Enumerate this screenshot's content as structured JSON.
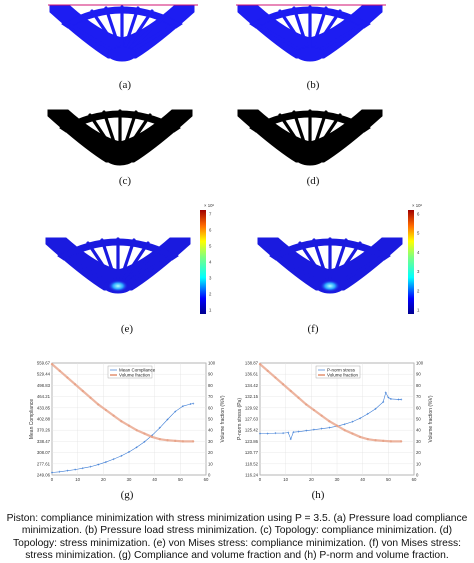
{
  "panel_labels": [
    "(a)",
    "(b)",
    "(c)",
    "(d)",
    "(e)",
    "(f)",
    "(g)",
    "(h)"
  ],
  "colors": {
    "structure_blue": "#1d1df2",
    "structure_black": "#000000",
    "stress_low": "#1a1adf",
    "compliance_series": "#3a7bd5",
    "volume_series": "#e8a388"
  },
  "colorbar_e": {
    "exponent": "× 10⁶",
    "ticks": [
      "7",
      "6",
      "5",
      "4",
      "3",
      "2",
      "1"
    ]
  },
  "colorbar_f": {
    "exponent": "× 10⁶",
    "ticks": [
      "6",
      "5",
      "4",
      "3",
      "2",
      "1"
    ]
  },
  "caption": {
    "text": "Piston: compliance minimization with stress minimization using P = 3.5. (a) Pressure load compliance minimization. (b) Pressure load stress minimization. (c) Topology: compliance minimization. (d) Topology: stress minimization. (e) von Mises stress: compliance minimization. (f) von Mises stress: stress minimization. (g) Compliance and volume fraction and (h) P-norm and volume fraction."
  },
  "chart_data": [
    {
      "type": "line",
      "xlabel": "",
      "ylabel": "Mean Compliance",
      "y2label": "Volume fraction (%V)",
      "xlim": [
        0,
        60
      ],
      "ylim": [
        249.06,
        559.67
      ],
      "y2lim": [
        0,
        100
      ],
      "yticks": [
        "559.67",
        "529.44",
        "498.83",
        "464.21",
        "433.85",
        "402.88",
        "370.26",
        "338.47",
        "308.07",
        "277.61",
        "249.06"
      ],
      "y2ticks": [
        "100",
        "90",
        "80",
        "70",
        "60",
        "50",
        "40",
        "30",
        "20",
        "10",
        "0"
      ],
      "xticks": [
        "0",
        "10",
        "20",
        "30",
        "40",
        "50",
        "60"
      ],
      "legend": [
        "Mean Compliance",
        "Volume fraction"
      ],
      "legend_position": "top-center",
      "series": [
        {
          "name": "Mean Compliance",
          "axis": "left",
          "x": [
            0,
            3,
            6,
            9,
            12,
            15,
            18,
            21,
            24,
            27,
            30,
            33,
            36,
            39,
            42,
            45,
            48,
            51,
            54,
            55
          ],
          "values": [
            256,
            258,
            261,
            264,
            268,
            272,
            278,
            285,
            293,
            302,
            313,
            326,
            341,
            359,
            380,
            403,
            425,
            440,
            446,
            447
          ]
        },
        {
          "name": "Volume fraction",
          "axis": "right",
          "x": [
            0,
            3,
            6,
            9,
            12,
            15,
            18,
            21,
            24,
            27,
            30,
            33,
            36,
            39,
            42,
            45,
            48,
            51,
            55
          ],
          "values": [
            99,
            93,
            87,
            81,
            75,
            69,
            63,
            58,
            53,
            48,
            44,
            40,
            37,
            34,
            32,
            31,
            30.5,
            30,
            30
          ]
        }
      ]
    },
    {
      "type": "line",
      "xlabel": "",
      "ylabel": "P-norm stress (Pa)",
      "y2label": "Volume fraction (%V)",
      "xlim": [
        0,
        60
      ],
      "ylim": [
        116.24,
        138.87
      ],
      "y2lim": [
        0,
        100
      ],
      "yticks": [
        "138.87",
        "136.61",
        "134.42",
        "132.15",
        "129.92",
        "127.63",
        "125.42",
        "123.86",
        "120.77",
        "118.52",
        "116.24"
      ],
      "y2ticks": [
        "100",
        "90",
        "80",
        "70",
        "60",
        "50",
        "40",
        "30",
        "20",
        "10",
        "0"
      ],
      "xticks": [
        "0",
        "10",
        "20",
        "30",
        "40",
        "50",
        "60"
      ],
      "legend": [
        "P-norm stress",
        "Volume fraction"
      ],
      "legend_position": "top-center",
      "series": [
        {
          "name": "P-norm stress",
          "axis": "left",
          "x": [
            0,
            3,
            6,
            9,
            11,
            12,
            13,
            15,
            18,
            21,
            24,
            27,
            30,
            33,
            36,
            39,
            42,
            45,
            48,
            49,
            50,
            51,
            54,
            55
          ],
          "values": [
            124.6,
            124.6,
            124.7,
            124.7,
            124.8,
            123.5,
            124.9,
            125.0,
            125.2,
            125.4,
            125.6,
            125.8,
            126.1,
            126.5,
            127.0,
            127.7,
            128.6,
            129.6,
            131.0,
            132.9,
            131.9,
            131.6,
            131.5,
            131.5
          ]
        },
        {
          "name": "Volume fraction",
          "axis": "right",
          "x": [
            0,
            3,
            6,
            9,
            12,
            15,
            18,
            21,
            24,
            27,
            30,
            33,
            36,
            39,
            42,
            45,
            48,
            51,
            55
          ],
          "values": [
            99,
            93,
            87,
            81,
            75,
            69,
            63,
            58,
            53,
            48,
            44,
            40,
            37,
            34,
            32,
            31,
            30.5,
            30,
            30
          ]
        }
      ]
    }
  ]
}
